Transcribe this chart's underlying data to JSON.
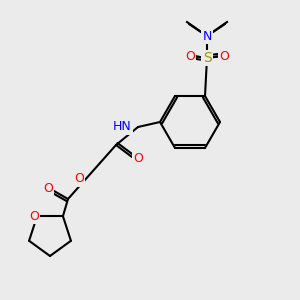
{
  "bg_color": "#ebebeb",
  "bond_color": "#000000",
  "bond_width": 1.5,
  "atom_colors": {
    "N": "#0000ff",
    "O": "#ff0000",
    "S": "#999900",
    "C": "#000000",
    "H": "#4d8080"
  },
  "font_size_atom": 9,
  "font_size_methyl": 8
}
